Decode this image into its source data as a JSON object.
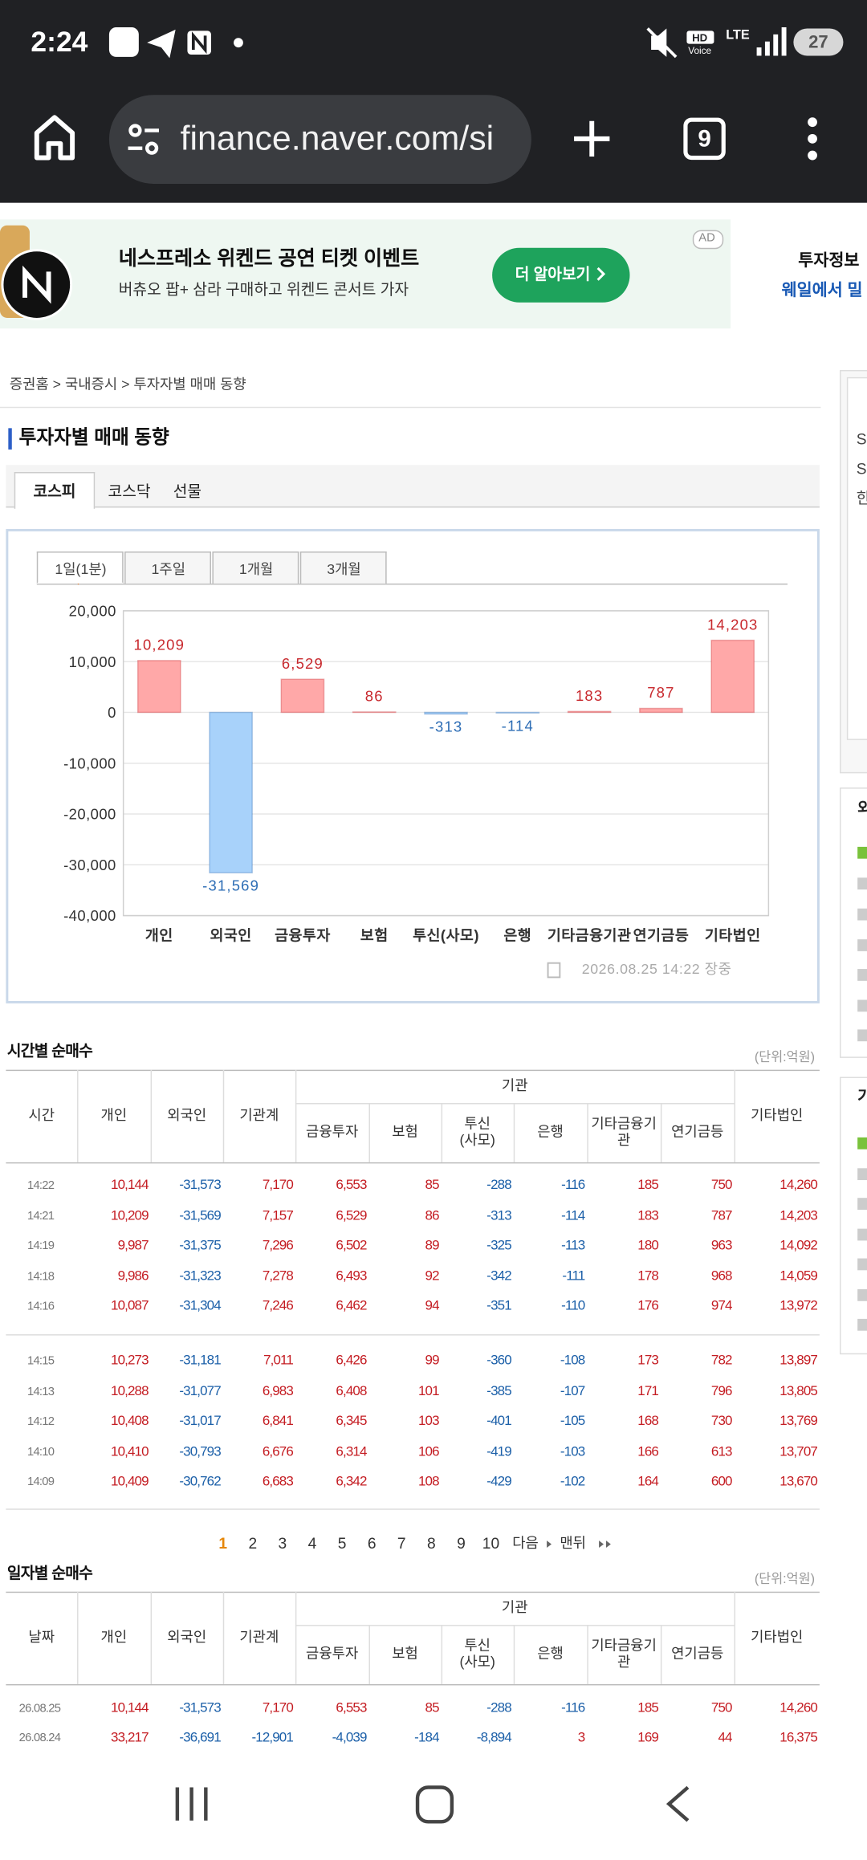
{
  "status_bar": {
    "time": "2:24",
    "hd_badge": "HD",
    "hd_label": "Voice",
    "network": "LTE",
    "battery": "27"
  },
  "browser": {
    "url": "finance.naver.com/si",
    "tab_count": "9"
  },
  "ad": {
    "badge": "AD",
    "title": "네스프레소 위켄드 공연 티켓 이벤트",
    "subtitle": "버츄오 팝+ 삼라 구매하고 위켄드 콘서트 가자",
    "button": "더 알아보기",
    "side_title": "투자정보",
    "side_link": "웨일에서 밀"
  },
  "breadcrumb": "증권홈 > 국내증시 > 투자자별 매매 동향",
  "page_title": "투자자별 매매 동향",
  "market_tabs": [
    "코스피",
    "코스닥",
    "선물"
  ],
  "period_tabs": [
    "1일(1분)",
    "1주일",
    "1개월",
    "3개월"
  ],
  "chart_data": {
    "type": "bar",
    "categories": [
      "개인",
      "외국인",
      "금융투자",
      "보험",
      "투신(사모)",
      "은행",
      "기타금융기관",
      "연기금등",
      "기타법인"
    ],
    "values": [
      10209,
      -31569,
      6529,
      86,
      -313,
      -114,
      183,
      787,
      14203
    ],
    "value_labels": [
      "10,209",
      "-31,569",
      "6,529",
      "86",
      "-313",
      "-114",
      "183",
      "787",
      "14,203"
    ],
    "positive_color": "#ffa8a8",
    "negative_color": "#a8d2fa",
    "positive_label_color": "#c8282d",
    "negative_label_color": "#2d6db5",
    "ylim": [
      -40000,
      20000
    ],
    "yticks": [
      {
        "value": 20000,
        "label": "20,000"
      },
      {
        "value": 10000,
        "label": "10,000"
      },
      0,
      {
        "value": -10000,
        "label": "-10,000"
      },
      {
        "value": -20000,
        "label": "-20,000"
      },
      {
        "value": -30000,
        "label": "-30,000"
      },
      {
        "value": -40000,
        "label": "-40,000"
      }
    ],
    "grid": true
  },
  "chart_timestamp": "2026.08.25 14:22 장중",
  "hourly": {
    "title": "시간별 순매수",
    "unit": "(단위:억원)",
    "group_header": "기관",
    "columns": [
      "시간",
      "개인",
      "외국인",
      "기관계",
      "금융투자",
      "보험",
      "투신\n(사모)",
      "은행",
      "기타금융기\n관",
      "연기금등",
      "기타법인"
    ],
    "row_groups": [
      [
        [
          "14:22",
          "10,144",
          "-31,573",
          "7,170",
          "6,553",
          "85",
          "-288",
          "-116",
          "185",
          "750",
          "14,260"
        ],
        [
          "14:21",
          "10,209",
          "-31,569",
          "7,157",
          "6,529",
          "86",
          "-313",
          "-114",
          "183",
          "787",
          "14,203"
        ],
        [
          "14:19",
          "9,987",
          "-31,375",
          "7,296",
          "6,502",
          "89",
          "-325",
          "-113",
          "180",
          "963",
          "14,092"
        ],
        [
          "14:18",
          "9,986",
          "-31,323",
          "7,278",
          "6,493",
          "92",
          "-342",
          "-111",
          "178",
          "968",
          "14,059"
        ],
        [
          "14:16",
          "10,087",
          "-31,304",
          "7,246",
          "6,462",
          "94",
          "-351",
          "-110",
          "176",
          "974",
          "13,972"
        ]
      ],
      [
        [
          "14:15",
          "10,273",
          "-31,181",
          "7,011",
          "6,426",
          "99",
          "-360",
          "-108",
          "173",
          "782",
          "13,897"
        ],
        [
          "14:13",
          "10,288",
          "-31,077",
          "6,983",
          "6,408",
          "101",
          "-385",
          "-107",
          "171",
          "796",
          "13,805"
        ],
        [
          "14:12",
          "10,408",
          "-31,017",
          "6,841",
          "6,345",
          "103",
          "-401",
          "-105",
          "168",
          "730",
          "13,769"
        ],
        [
          "14:10",
          "10,410",
          "-30,793",
          "6,676",
          "6,314",
          "106",
          "-419",
          "-103",
          "166",
          "613",
          "13,707"
        ],
        [
          "14:09",
          "10,409",
          "-30,762",
          "6,683",
          "6,342",
          "108",
          "-429",
          "-102",
          "164",
          "600",
          "13,670"
        ]
      ]
    ]
  },
  "pagination": {
    "pages": [
      1,
      2,
      3,
      4,
      5,
      6,
      7,
      8,
      9,
      10
    ],
    "current_page": 1,
    "next": "다음",
    "last": "맨뒤"
  },
  "daily": {
    "title": "일자별 순매수",
    "unit": "(단위:억원)",
    "group_header": "기관",
    "columns": [
      "날짜",
      "개인",
      "외국인",
      "기관계",
      "금융투자",
      "보험",
      "투신\n(사모)",
      "은행",
      "기타금융기\n관",
      "연기금등",
      "기타법인"
    ],
    "row_groups": [
      [
        [
          "26.08.25",
          "10,144",
          "-31,573",
          "7,170",
          "6,553",
          "85",
          "-288",
          "-116",
          "185",
          "750",
          "14,260"
        ],
        [
          "26.08.24",
          "33,217",
          "-36,691",
          "-12,901",
          "-4,039",
          "-184",
          "-8,894",
          "3",
          "169",
          "44",
          "16,375"
        ]
      ]
    ]
  },
  "sidebar": {
    "lines": [
      "S",
      "S",
      "한"
    ],
    "headers": [
      "외",
      "기"
    ]
  }
}
